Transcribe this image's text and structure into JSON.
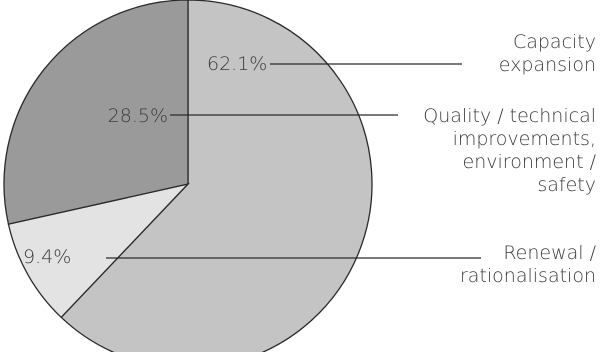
{
  "chart_data": {
    "type": "pie",
    "title": "",
    "start_angle": "12 o'clock",
    "direction": "clockwise",
    "slices": [
      {
        "label": [
          "Capacity",
          "expansion"
        ],
        "value": 62.1,
        "value_label": "62.1%",
        "color": "#c4c4c4"
      },
      {
        "label": [
          "Renewal /",
          "rationalisation"
        ],
        "value": 9.4,
        "value_label": "9.4%",
        "color": "#e3e3e3"
      },
      {
        "label": [
          "Quality / technical",
          "improvements,",
          "environment /",
          "safety"
        ],
        "value": 28.5,
        "value_label": "28.5%",
        "color": "#9a9a9a"
      }
    ],
    "legend": "none (labels connected by leader lines on the right)"
  }
}
